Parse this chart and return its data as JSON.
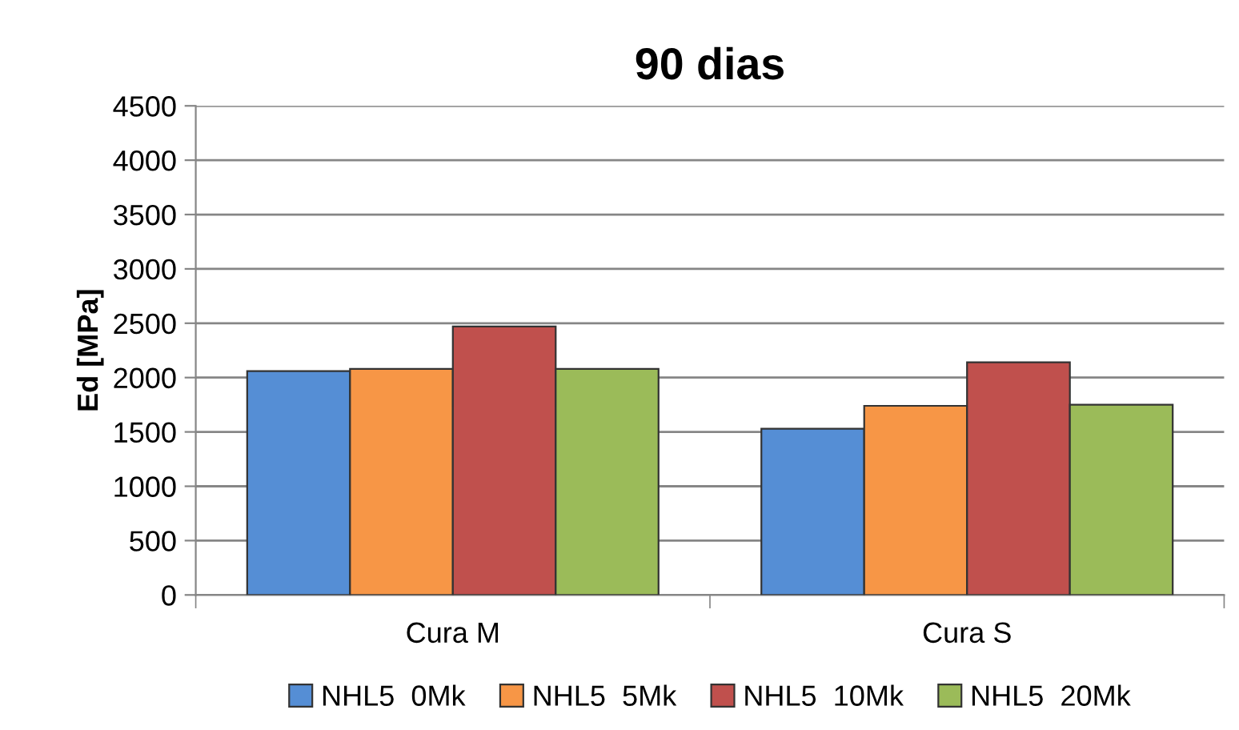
{
  "chart_data": {
    "type": "bar",
    "title": "90 dias",
    "ylabel": "Ed [MPa]",
    "categories": [
      "Cura M",
      "Cura S"
    ],
    "series": [
      {
        "name": "NHL5  0Mk",
        "color": "#558ed5",
        "values": [
          2060,
          1530
        ]
      },
      {
        "name": "NHL5  5Mk",
        "color": "#f79646",
        "values": [
          2080,
          1740
        ]
      },
      {
        "name": "NHL5  10Mk",
        "color": "#c0504d",
        "values": [
          2470,
          2140
        ]
      },
      {
        "name": "NHL5  20Mk",
        "color": "#9bbb59",
        "values": [
          2080,
          1750
        ]
      }
    ],
    "ylim": [
      0,
      4500
    ],
    "yticks": [
      0,
      500,
      1000,
      1500,
      2000,
      2500,
      3000,
      3500,
      4000,
      4500
    ],
    "grid": "y",
    "legend": "bottom"
  }
}
